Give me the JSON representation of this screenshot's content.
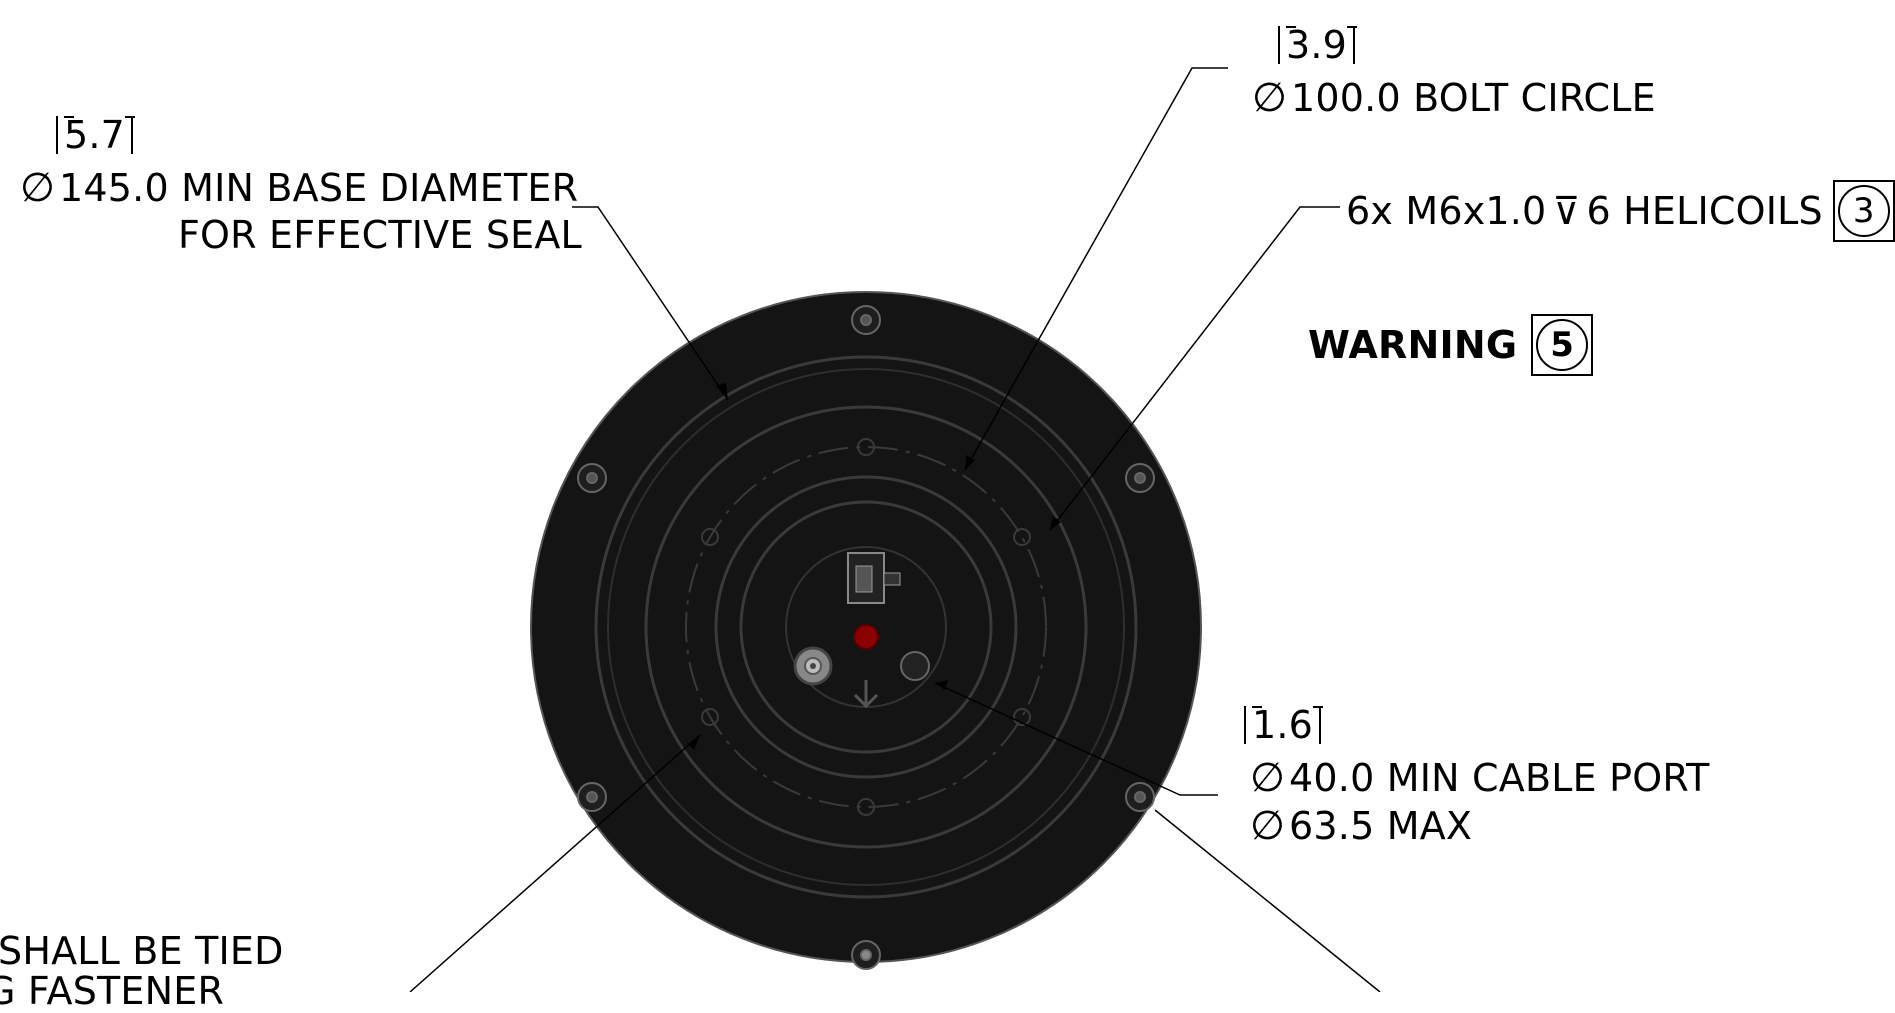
{
  "annotations": {
    "base_diameter": {
      "inch": "5.7",
      "line1": "145.0 MIN BASE DIAMETER",
      "line2": "FOR EFFECTIVE SEAL",
      "symbol": "∅"
    },
    "bolt_circle": {
      "inch": "3.9",
      "text": "100.0 BOLT CIRCLE",
      "symbol": "∅"
    },
    "helicoils": {
      "text": "6x M6x1.0",
      "depth_symbol": "⊽",
      "text2": "6 HELICOILS",
      "ref": "3"
    },
    "warning": {
      "text": "WARNING",
      "ref": "5"
    },
    "cable_port": {
      "inch": "1.6",
      "line1": "40.0 MIN CABLE PORT",
      "line2": "63.5 MAX",
      "symbol": "∅"
    },
    "cutoff_note": {
      "line1": "SHALL BE TIED",
      "line2": "G FASTENER"
    }
  },
  "colors": {
    "housing": "#151515",
    "ring_line": "#3a3a3a",
    "red_led": "#8b0000",
    "leader": "#000000"
  }
}
